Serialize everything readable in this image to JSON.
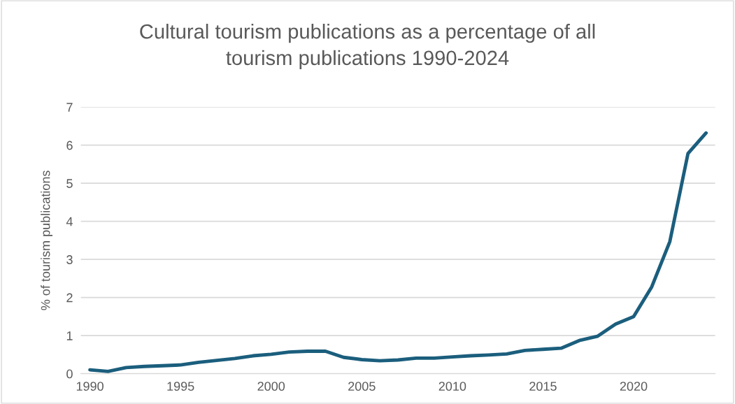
{
  "chart_data": {
    "type": "line",
    "title": "Cultural tourism publications as a percentage of all tourism publications 1990-2024",
    "ylabel": "% of tourism publications",
    "x": [
      1990,
      1991,
      1992,
      1993,
      1994,
      1995,
      1996,
      1997,
      1998,
      1999,
      2000,
      2001,
      2002,
      2003,
      2004,
      2005,
      2006,
      2007,
      2008,
      2009,
      2010,
      2011,
      2012,
      2013,
      2014,
      2015,
      2016,
      2017,
      2018,
      2019,
      2020,
      2021,
      2022,
      2023,
      2024
    ],
    "series": [
      {
        "color": "#1b5e7d",
        "values": [
          0.1,
          0.06,
          0.16,
          0.19,
          0.21,
          0.23,
          0.3,
          0.35,
          0.4,
          0.47,
          0.51,
          0.57,
          0.59,
          0.59,
          0.43,
          0.37,
          0.34,
          0.36,
          0.41,
          0.41,
          0.44,
          0.47,
          0.49,
          0.52,
          0.61,
          0.64,
          0.67,
          0.87,
          0.98,
          1.3,
          1.5,
          2.28,
          3.47,
          5.78,
          6.32
        ]
      }
    ],
    "xlim": [
      1989.5,
      2024.5
    ],
    "xticks": [
      1990,
      1995,
      2000,
      2005,
      2010,
      2015,
      2020
    ],
    "ylim": [
      0,
      7
    ],
    "yticks": [
      0,
      1,
      2,
      3,
      4,
      5,
      6,
      7
    ],
    "grid": "y",
    "marker": "none",
    "line_style": "solid"
  }
}
